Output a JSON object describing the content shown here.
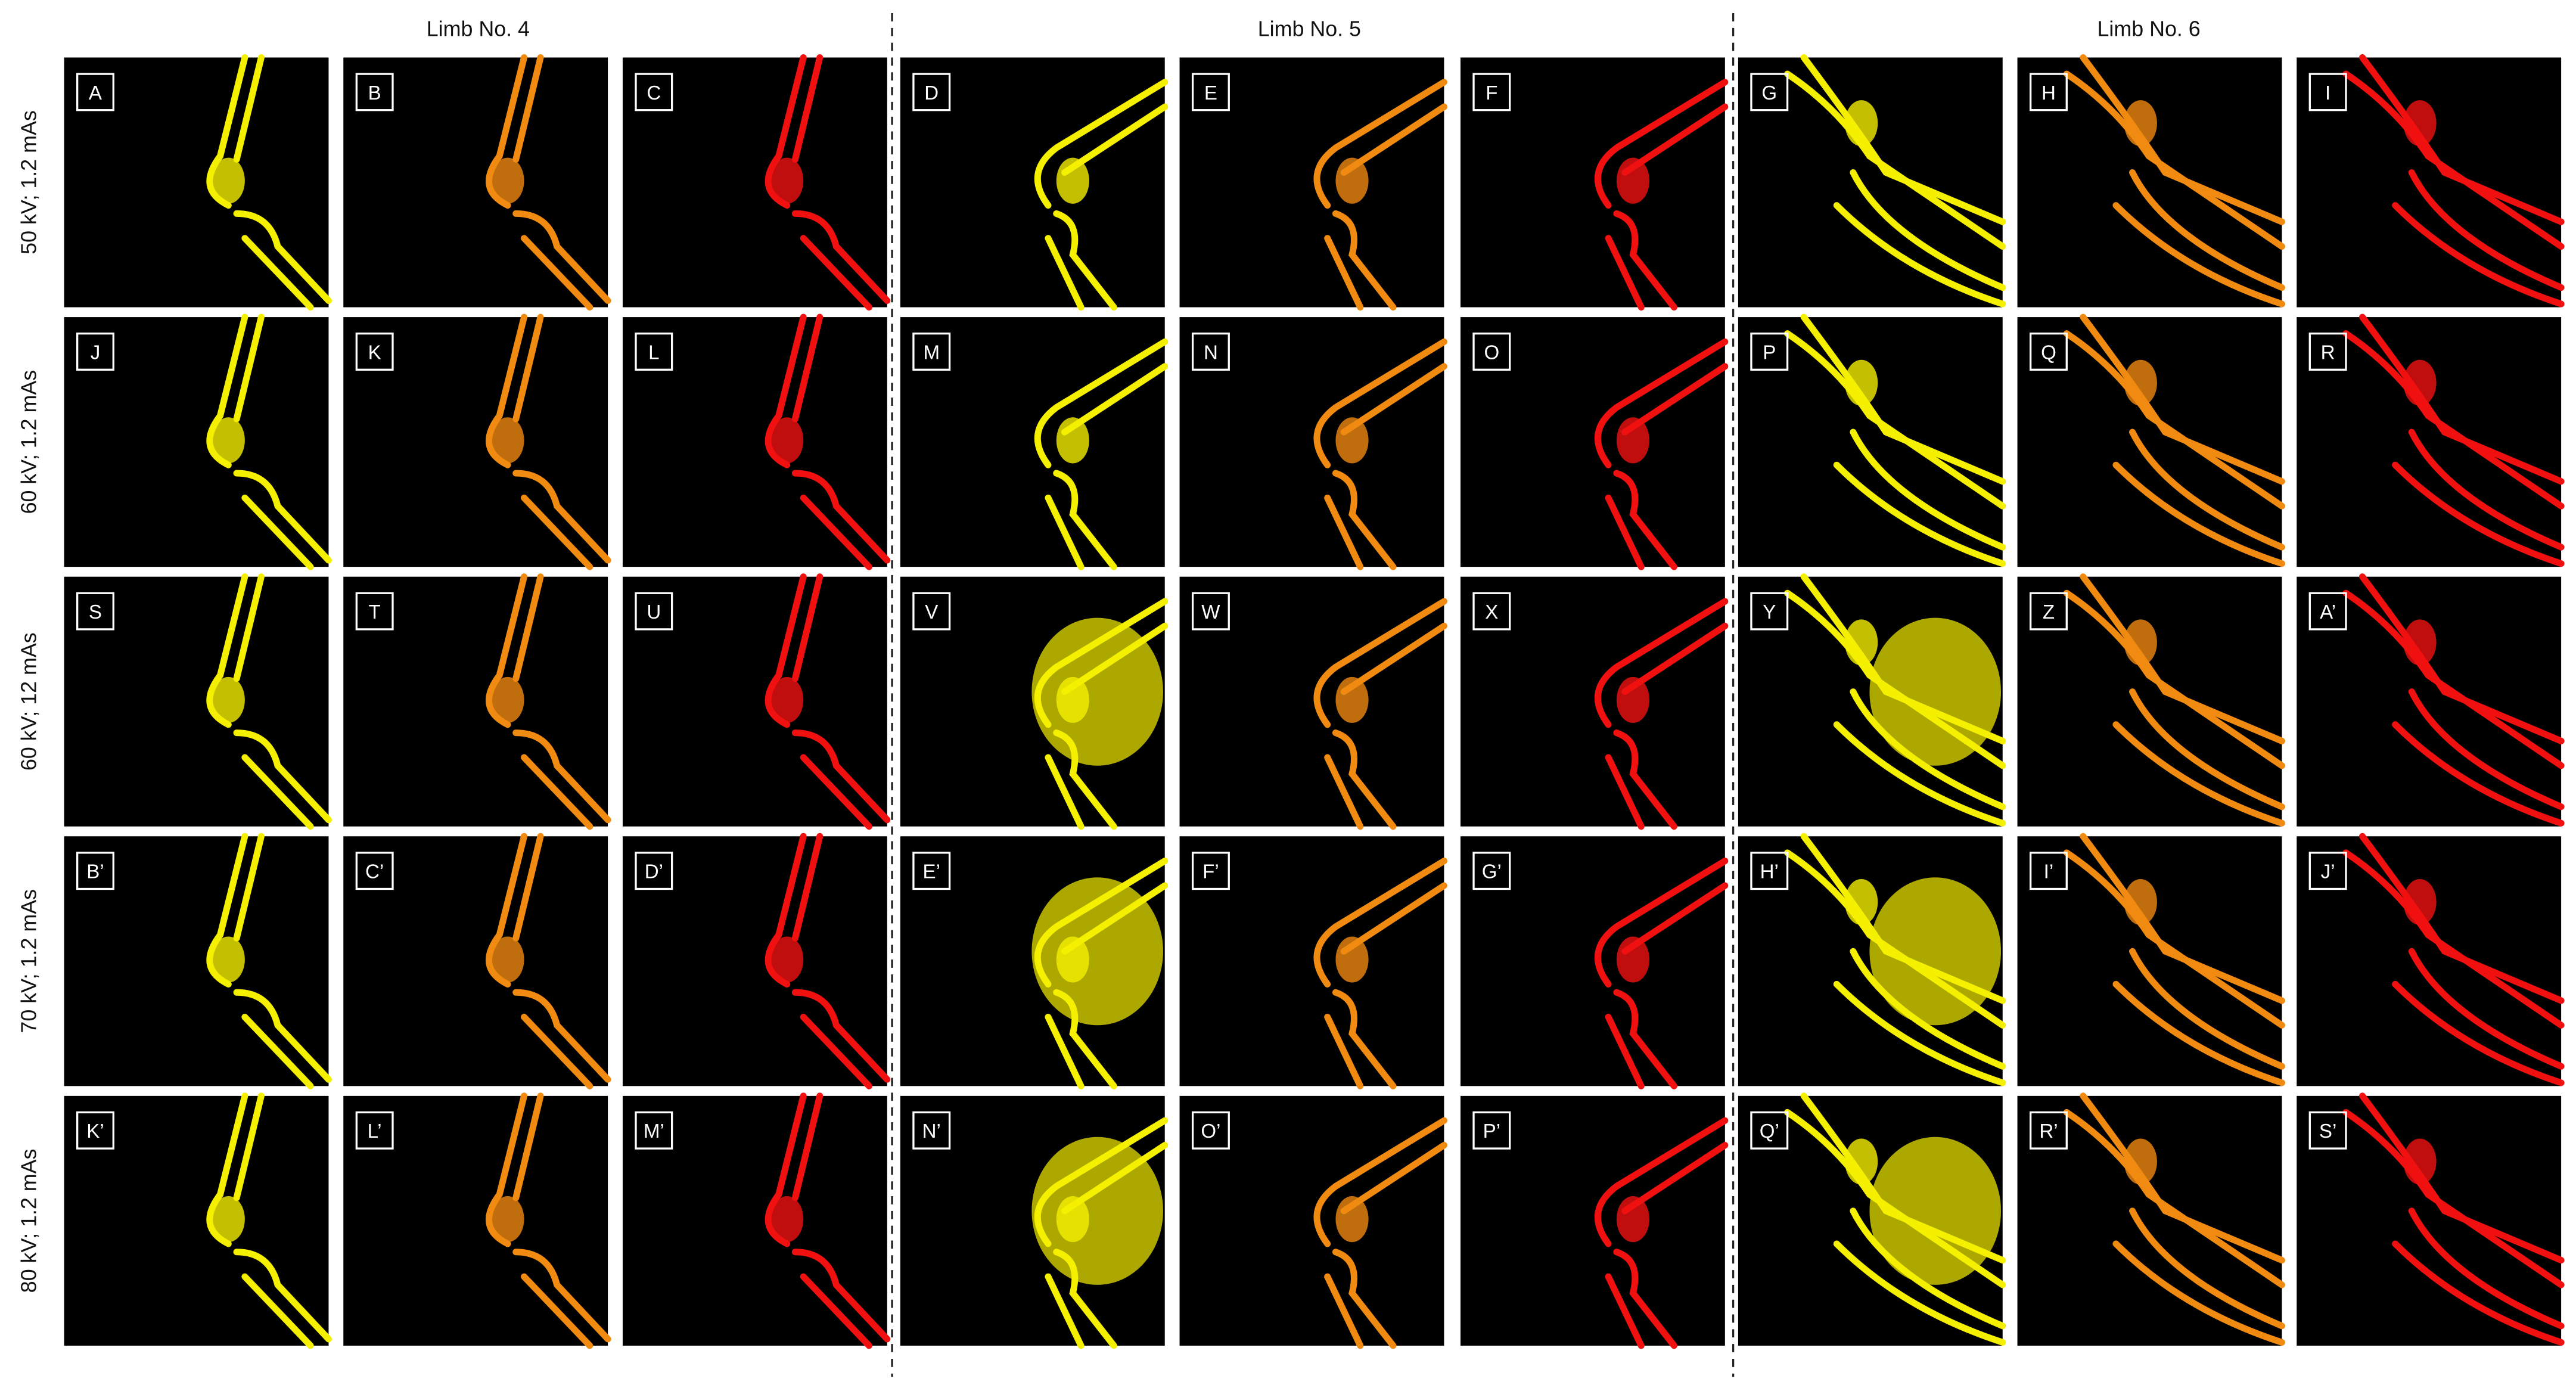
{
  "columns": [
    {
      "title": "Limb No. 4"
    },
    {
      "title": "Limb No. 5"
    },
    {
      "title": "Limb No. 6"
    }
  ],
  "rows": [
    {
      "label": "50 kV; 1.2 mAs",
      "panels": [
        "A",
        "B",
        "C",
        "D",
        "E",
        "F",
        "G",
        "H",
        "I"
      ]
    },
    {
      "label": "60 kV; 1.2 mAs",
      "panels": [
        "J",
        "K",
        "L",
        "M",
        "N",
        "O",
        "P",
        "Q",
        "R"
      ]
    },
    {
      "label": "60 kV; 12 mAs",
      "panels": [
        "S",
        "T",
        "U",
        "V",
        "W",
        "X",
        "Y",
        "Z",
        "A’"
      ]
    },
    {
      "label": "70 kV; 1.2 mAs",
      "panels": [
        "B’",
        "C’",
        "D’",
        "E’",
        "F’",
        "G’",
        "H’",
        "I’",
        "J’"
      ]
    },
    {
      "label": "80 kV; 1.2 mAs",
      "panels": [
        "K’",
        "L’",
        "M’",
        "N’",
        "O’",
        "P’",
        "Q’",
        "R’",
        "S’"
      ]
    }
  ]
}
